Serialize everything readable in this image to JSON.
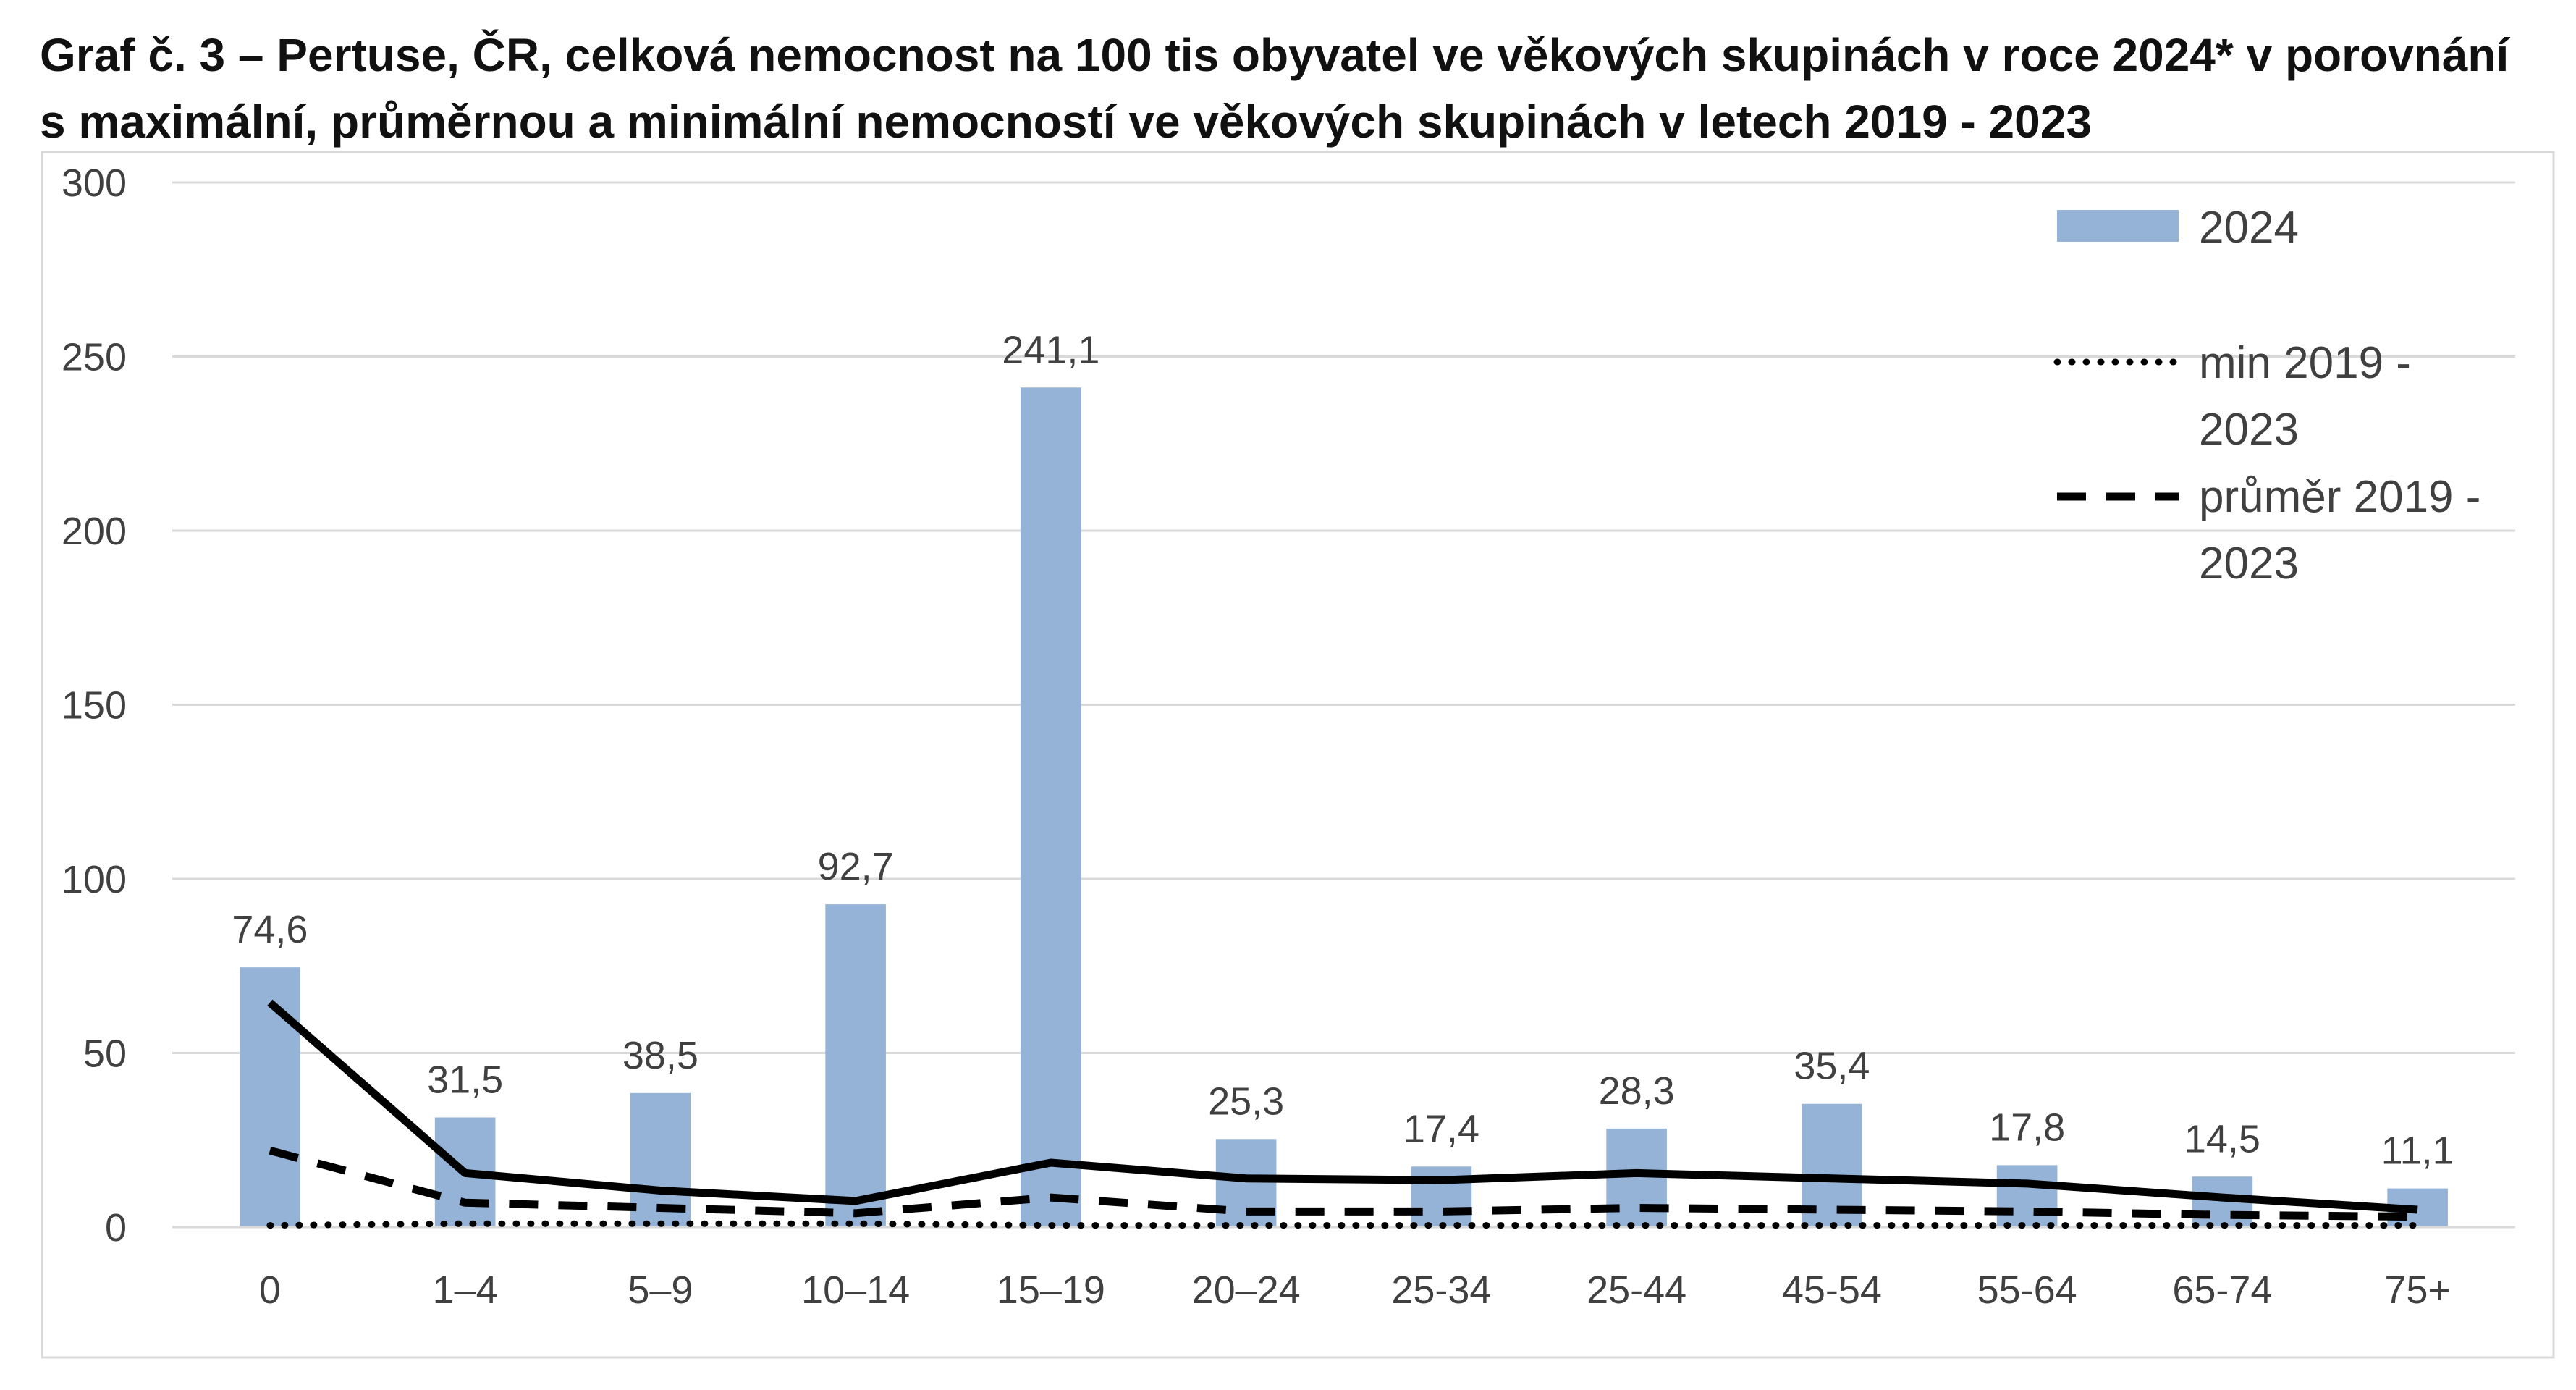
{
  "chart_data": {
    "type": "bar",
    "title_lines": [
      "Graf č. 3 – Pertuse, ČR, celková nemocnost na 100 tis obyvatel ve věkových skupinách v roce 2024* v porovnání",
      "s maximální, průměrnou a minimální nemocností ve věkových skupinách v  letech 2019 - 2023"
    ],
    "xlabel": "",
    "ylabel": "",
    "ylim": [
      0,
      300
    ],
    "yticks": [
      "0",
      "50",
      "100",
      "150",
      "200",
      "250",
      "300"
    ],
    "categories": [
      "0",
      "1–4",
      "5–9",
      "10–14",
      "15–19",
      "20–24",
      "25-34",
      "25-44",
      "45-54",
      "55-64",
      "65-74",
      "75+"
    ],
    "grid": true,
    "legend_position": "top-right",
    "series": [
      {
        "name": "2024",
        "type": "bar",
        "color": "#95b3d7",
        "values": [
          74.6,
          31.5,
          38.5,
          92.7,
          241.1,
          25.3,
          17.4,
          28.3,
          35.4,
          17.8,
          14.5,
          11.1
        ],
        "labels": [
          "74,6",
          "31,5",
          "38,5",
          "92,7",
          "241,1",
          "25,3",
          "17,4",
          "28,3",
          "35,4",
          "17,8",
          "14,5",
          "11,1"
        ]
      },
      {
        "name": "",
        "type": "line",
        "style": "solid",
        "color": "#000000",
        "values": [
          64.5,
          15.5,
          10.5,
          7.5,
          18.5,
          14,
          13.5,
          15.5,
          14,
          12.5,
          8.5,
          5
        ]
      },
      {
        "name": "průměr 2019 - 2023",
        "legend_lines": [
          "průměr 2019 -",
          "2023"
        ],
        "type": "line",
        "style": "dashed",
        "color": "#000000",
        "values": [
          22,
          7,
          5.5,
          4,
          8.5,
          4.5,
          4.5,
          5.5,
          5,
          4.5,
          3.5,
          3
        ]
      },
      {
        "name": "min 2019 - 2023",
        "legend_lines": [
          "min 2019 -",
          "2023"
        ],
        "type": "line",
        "style": "dotted",
        "color": "#000000",
        "values": [
          0.5,
          1,
          1,
          1,
          0.5,
          0.5,
          0.5,
          0.5,
          0.5,
          0.5,
          0.5,
          0.5
        ]
      }
    ]
  }
}
